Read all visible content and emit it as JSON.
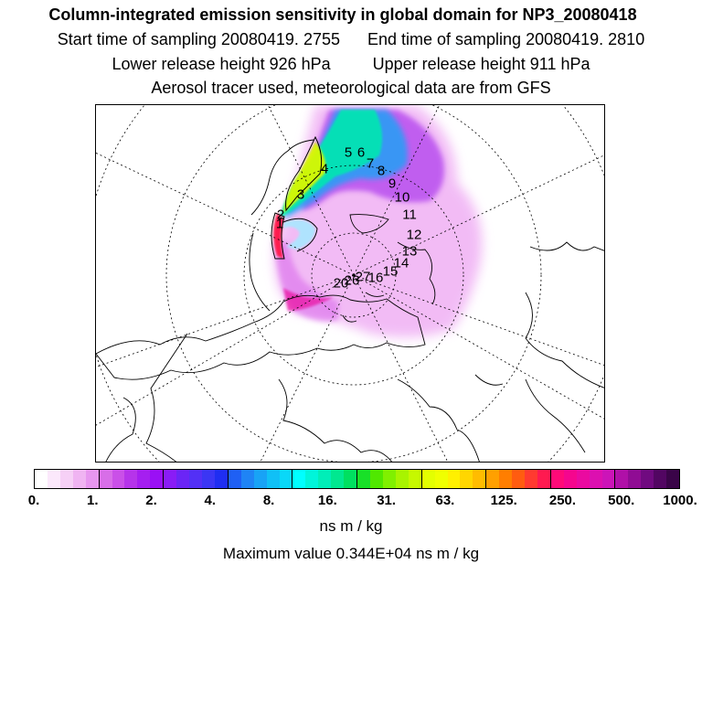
{
  "title": "Column-integrated emission sensitivity in global domain for NP3_20080418",
  "sampling": {
    "start_label": "Start time of sampling 20080419.  2755",
    "end_label": "End time of sampling 20080419.  2810"
  },
  "release": {
    "lower_label": "Lower release height  926 hPa",
    "upper_label": "Upper release height  911 hPa"
  },
  "tracer_note": "Aerosol tracer used, meteorological data are from GFS",
  "map_labels": [
    "5",
    "6",
    "7",
    "8",
    "9",
    "10",
    "11",
    "12",
    "13",
    "14",
    "15",
    "16",
    "4",
    "3",
    "2",
    "1",
    "20",
    "26",
    "27"
  ],
  "colorbar": {
    "tick_labels": [
      "0.",
      "1.",
      "2.",
      "4.",
      "8.",
      "16.",
      "31.",
      "63.",
      "125.",
      "250.",
      "500.",
      "1000."
    ],
    "colors": [
      "#ffffff",
      "#fbe8fb",
      "#f6d0f6",
      "#f0b4f2",
      "#e796ef",
      "#d86ee8",
      "#ca50e8",
      "#b634ea",
      "#a51ff0",
      "#9a10f5",
      "#8a1cf6",
      "#6b25f6",
      "#5330f6",
      "#3b36f4",
      "#1f2ef2",
      "#1f60f4",
      "#1f84f5",
      "#18a3f6",
      "#10c0f6",
      "#0ad8f8",
      "#00ffff",
      "#00f5da",
      "#00eeb8",
      "#00e890",
      "#00e060",
      "#18e028",
      "#50e800",
      "#80f000",
      "#a8f400",
      "#c6f800",
      "#e4ff00",
      "#f0ff00",
      "#fff000",
      "#ffd600",
      "#ffbc00",
      "#ffa000",
      "#ff7e00",
      "#ff5c10",
      "#ff3a30",
      "#ff1a50",
      "#ff0a78",
      "#f5068e",
      "#ea0aa0",
      "#dc10b0",
      "#cc14b8",
      "#b010a8",
      "#900c94",
      "#700a80",
      "#520662",
      "#3a0448"
    ],
    "units": "ns m / kg"
  },
  "max_value_label": "Maximum value  0.344E+04 ns m / kg"
}
